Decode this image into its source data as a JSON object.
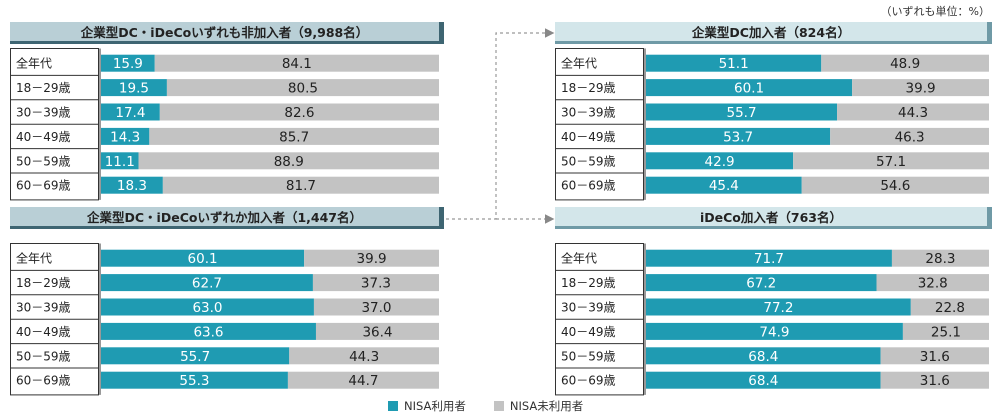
{
  "unit_note": "（いずれも単位：%）",
  "legend": {
    "used": "NISA利用者",
    "unused": "NISA未利用者"
  },
  "colors": {
    "used": "#1f9bb2",
    "unused": "#c3c3c3"
  },
  "chart_data": [
    {
      "type": "bar",
      "stacked": true,
      "orientation": "horizontal",
      "title": "企業型DC・iDeCoいずれも非加入者（9,988名）",
      "categories": [
        "全年代",
        "18－29歳",
        "30－39歳",
        "40－49歳",
        "50－59歳",
        "60－69歳"
      ],
      "series": [
        {
          "name": "NISA利用者",
          "values": [
            15.9,
            19.5,
            17.4,
            14.3,
            11.1,
            18.3
          ]
        },
        {
          "name": "NISA未利用者",
          "values": [
            84.1,
            80.5,
            82.6,
            85.7,
            88.9,
            81.7
          ]
        }
      ],
      "xlim": [
        0,
        100
      ]
    },
    {
      "type": "bar",
      "stacked": true,
      "orientation": "horizontal",
      "title": "企業型DC・iDeCoいずれか加入者（1,447名）",
      "categories": [
        "全年代",
        "18－29歳",
        "30－39歳",
        "40－49歳",
        "50－59歳",
        "60－69歳"
      ],
      "series": [
        {
          "name": "NISA利用者",
          "values": [
            60.1,
            62.7,
            63.0,
            63.6,
            55.7,
            55.3
          ]
        },
        {
          "name": "NISA未利用者",
          "values": [
            39.9,
            37.3,
            37.0,
            36.4,
            44.3,
            44.7
          ]
        }
      ],
      "xlim": [
        0,
        100
      ]
    },
    {
      "type": "bar",
      "stacked": true,
      "orientation": "horizontal",
      "title": "企業型DC加入者（824名）",
      "categories": [
        "全年代",
        "18－29歳",
        "30－39歳",
        "40－49歳",
        "50－59歳",
        "60－69歳"
      ],
      "series": [
        {
          "name": "NISA利用者",
          "values": [
            51.1,
            60.1,
            55.7,
            53.7,
            42.9,
            45.4
          ]
        },
        {
          "name": "NISA未利用者",
          "values": [
            48.9,
            39.9,
            44.3,
            46.3,
            57.1,
            54.6
          ]
        }
      ],
      "xlim": [
        0,
        100
      ]
    },
    {
      "type": "bar",
      "stacked": true,
      "orientation": "horizontal",
      "title": "iDeCo加入者（763名）",
      "categories": [
        "全年代",
        "18－29歳",
        "30－39歳",
        "40－49歳",
        "50－59歳",
        "60－69歳"
      ],
      "series": [
        {
          "name": "NISA利用者",
          "values": [
            71.7,
            67.2,
            77.2,
            74.9,
            68.4,
            68.4
          ]
        },
        {
          "name": "NISA未利用者",
          "values": [
            28.3,
            32.8,
            22.8,
            25.1,
            31.6,
            31.6
          ]
        }
      ],
      "xlim": [
        0,
        100
      ]
    }
  ]
}
